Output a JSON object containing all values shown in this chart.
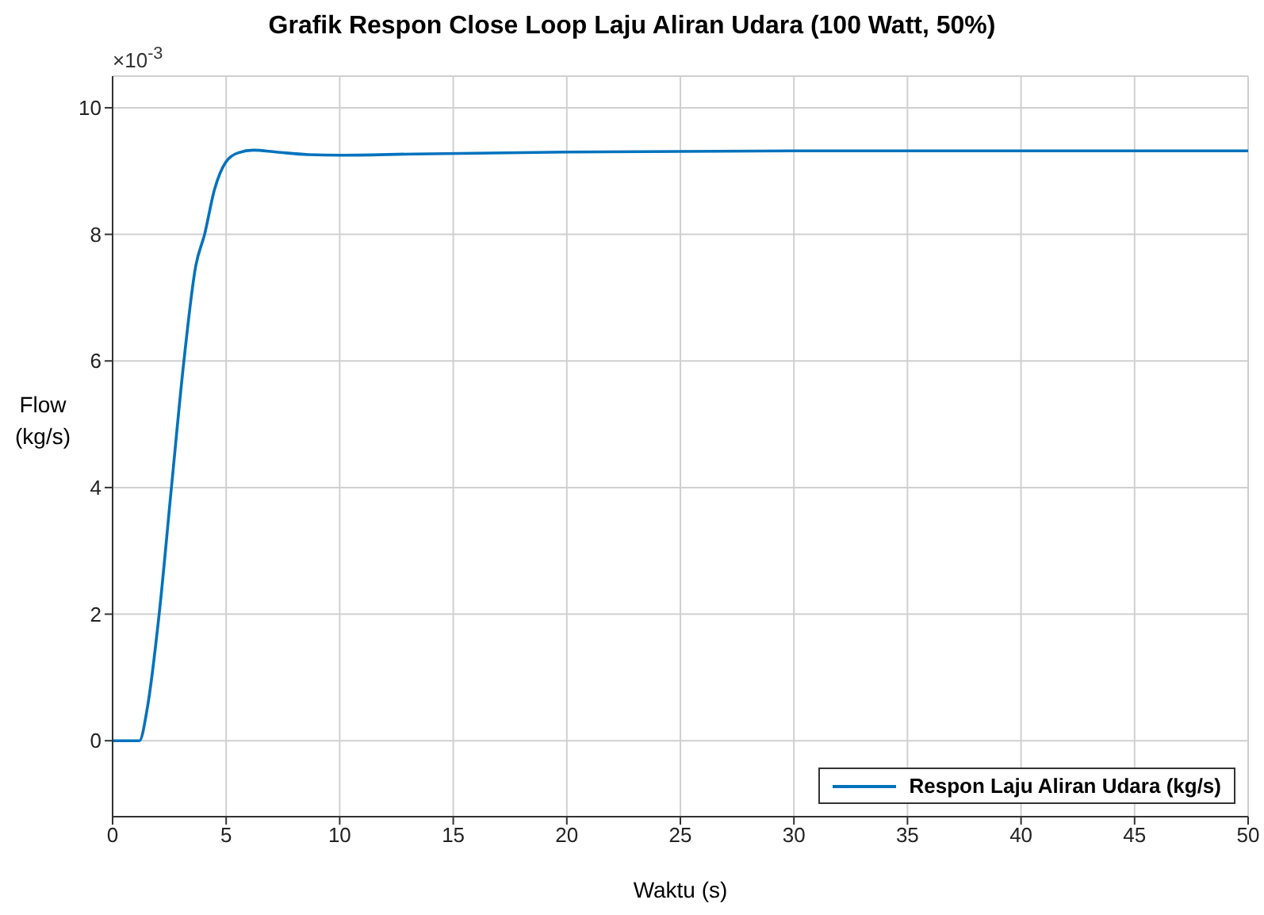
{
  "chart_data": {
    "type": "line",
    "title": "Grafik Respon Close Loop Laju Aliran Udara (100 Watt, 50%)",
    "xlabel": "Waktu (s)",
    "ylabel": "Flow (kg/s)",
    "annotations": [
      "×10$^{-3}$"
    ],
    "x": [
      0,
      1.18,
      1.53,
      2.05,
      2.59,
      3.14,
      3.66,
      4.05,
      4.48,
      5.0,
      5.54,
      6.2,
      7.2,
      8.6,
      10,
      13.3,
      20,
      30,
      40,
      50
    ],
    "series": [
      {
        "name": "Respon Laju Aliran Udara (kg/s)",
        "color": "#0072bd",
        "values": [
          0,
          0,
          0.52,
          2.0,
          4.0,
          6.0,
          7.5,
          8.0,
          8.7,
          9.15,
          9.29,
          9.33,
          9.3,
          9.26,
          9.25,
          9.27,
          9.3,
          9.32,
          9.32,
          9.32
        ]
      }
    ],
    "xlim": [
      0,
      50
    ],
    "xticks": [
      0,
      5,
      10,
      15,
      20,
      25,
      30,
      35,
      40,
      45,
      50
    ],
    "ylim": [
      -1.2,
      10.5
    ],
    "yticks": [
      0,
      2,
      4,
      6,
      8,
      10
    ],
    "grid": true,
    "legend": "bottom right",
    "marker": "none",
    "line_style": "solid"
  }
}
